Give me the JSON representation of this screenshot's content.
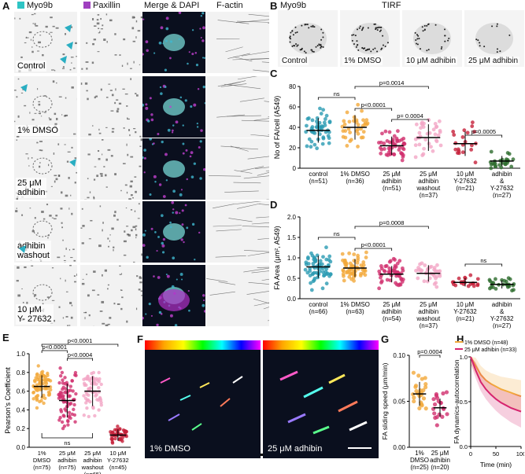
{
  "panel_letters": {
    "a": "A",
    "b": "B",
    "c": "C",
    "d": "D",
    "e": "E",
    "f": "F",
    "g": "G",
    "h": "H"
  },
  "panel_a": {
    "headers": {
      "myo9b": "Myo9b",
      "paxillin": "Paxillin",
      "merge": "Merge & DAPI",
      "factin": "F-actin"
    },
    "rows": [
      {
        "label": "Control"
      },
      {
        "label": "1% DMSO"
      },
      {
        "label": "25 μM\nadhibin"
      },
      {
        "label": "adhibin\nwashout"
      },
      {
        "label": "10 μM\nY- 27632"
      }
    ],
    "colors": {
      "myo9b": "#2ec4c4",
      "paxillin": "#a040c0",
      "arrow": "#2aaec2"
    }
  },
  "panel_b": {
    "title_left": "Myo9b",
    "title_center": "TIRF",
    "tiles": [
      {
        "label": "Control"
      },
      {
        "label": "1% DMSO"
      },
      {
        "label": "10 μM adhibin"
      },
      {
        "label": "25 μM adhibin"
      }
    ]
  },
  "panel_f": {
    "labels": [
      "1% DMSO",
      "25 μM adhibin"
    ]
  },
  "chart_data": [
    {
      "panel": "C",
      "type": "scatter",
      "ylabel": "No of FA/cell (A549)",
      "ylim": [
        0,
        80
      ],
      "yticks": [
        "0",
        "20",
        "40",
        "60",
        "80"
      ],
      "categories": [
        {
          "name": "control",
          "n": "(n=51)",
          "mean": 37,
          "sd": 12,
          "color": "#2a9bb3"
        },
        {
          "name": "1% DMSO",
          "n": "(n=36)",
          "mean": 40,
          "sd": 12,
          "color": "#f2a93b"
        },
        {
          "name": "25 μM\nadhibin",
          "n": "(n=51)",
          "mean": 22,
          "sd": 9,
          "color": "#d12f6e"
        },
        {
          "name": "25 μM\nadhibin\nwashout",
          "n": "(n=37)",
          "mean": 30,
          "sd": 13,
          "color": "#f3a6c6"
        },
        {
          "name": "10 μM\nY-27632",
          "n": "(n=21)",
          "mean": 24,
          "sd": 12,
          "color": "#c5203a"
        },
        {
          "name": "adhibin\n&\nY-27632",
          "n": "(n=27)",
          "mean": 7,
          "sd": 5,
          "color": "#2e6d2e"
        }
      ],
      "annotations": [
        "ns",
        "p<0.0001",
        "p=0.0014",
        "p= 0.0004",
        "p=0.0005"
      ]
    },
    {
      "panel": "D",
      "type": "scatter",
      "ylabel": "FA Area (μm², A549)",
      "ylim": [
        0,
        2
      ],
      "yticks": [
        "0.0",
        "0.5",
        "1.0",
        "1.5",
        "2.0"
      ],
      "categories": [
        {
          "name": "control",
          "n": "(n=66)",
          "mean": 0.78,
          "sd": 0.27,
          "color": "#2a9bb3"
        },
        {
          "name": "1% DMSO",
          "n": "(n=63)",
          "mean": 0.75,
          "sd": 0.22,
          "color": "#f2a93b"
        },
        {
          "name": "25 μM\nadhibin",
          "n": "(n=54)",
          "mean": 0.6,
          "sd": 0.2,
          "color": "#d12f6e"
        },
        {
          "name": "25 μM\nadhibin\nwashout",
          "n": "(n=37)",
          "mean": 0.62,
          "sd": 0.2,
          "color": "#f3a6c6"
        },
        {
          "name": "10 μM\nY-27632",
          "n": "(n=21)",
          "mean": 0.4,
          "sd": 0.1,
          "color": "#c5203a"
        },
        {
          "name": "adhibin\n&\nY-27632",
          "n": "(n=27)",
          "mean": 0.35,
          "sd": 0.1,
          "color": "#2e6d2e"
        }
      ],
      "annotations": [
        "ns",
        "p<0.0001",
        "p=0.0008",
        "ns"
      ]
    },
    {
      "panel": "E",
      "type": "scatter",
      "ylabel": "Pearson's Coefficient",
      "ylim": [
        0,
        1
      ],
      "yticks": [
        "0.0",
        "0.2",
        "0.4",
        "0.6",
        "0.8",
        "1.0"
      ],
      "categories": [
        {
          "name": "1%\nDMSO",
          "n": "(n=75)",
          "mean": 0.65,
          "sd": 0.12,
          "color": "#f2a93b"
        },
        {
          "name": "25 μM\nadhibin",
          "n": "(n=75)",
          "mean": 0.5,
          "sd": 0.18,
          "color": "#d12f6e"
        },
        {
          "name": "25 μM\nadhibin\nwashout",
          "n": "(n=65)",
          "mean": 0.6,
          "sd": 0.16,
          "color": "#f3a6c6"
        },
        {
          "name": "10 μM\nY-27632",
          "n": "(n=45)",
          "mean": 0.13,
          "sd": 0.06,
          "color": "#c5203a"
        }
      ],
      "annotations": [
        "p<0.0001",
        "p<0.0004",
        "p<0.0001",
        "ns"
      ]
    },
    {
      "panel": "G",
      "type": "scatter",
      "ylabel": "FA sliding speed (μm/min)",
      "ylim": [
        0,
        0.1
      ],
      "yticks": [
        "0.00",
        "0.05",
        "0.10"
      ],
      "categories": [
        {
          "name": "1%\nDMSO",
          "n": "(n=25)",
          "mean": 0.058,
          "sd": 0.013,
          "color": "#f2a93b"
        },
        {
          "name": "25 μM\nadhibin",
          "n": "(n=20)",
          "mean": 0.043,
          "sd": 0.01,
          "color": "#d12f6e"
        }
      ],
      "annotations": [
        "p=0.0004"
      ]
    },
    {
      "panel": "H",
      "type": "line",
      "ylabel": "FA dynamics-autocorrelation",
      "xlabel": "Time (min)",
      "xlim": [
        0,
        100
      ],
      "ylim": [
        0,
        1.0
      ],
      "xticks": [
        "0",
        "50",
        "100"
      ],
      "yticks": [
        "0.0",
        "0.5",
        "1.0"
      ],
      "series": [
        {
          "name": "1% DMSO (n=48)",
          "color": "#f2a93b",
          "x": [
            0,
            10,
            20,
            30,
            40,
            50,
            60,
            70,
            80,
            90,
            100
          ],
          "y": [
            1.0,
            0.9,
            0.8,
            0.74,
            0.7,
            0.67,
            0.64,
            0.62,
            0.6,
            0.58,
            0.56
          ]
        },
        {
          "name": "25 μM adhibin (n=33)",
          "color": "#d6246e",
          "x": [
            0,
            10,
            20,
            30,
            40,
            50,
            60,
            70,
            80,
            90,
            100
          ],
          "y": [
            1.0,
            0.85,
            0.72,
            0.64,
            0.58,
            0.53,
            0.49,
            0.46,
            0.43,
            0.41,
            0.39
          ]
        }
      ]
    }
  ]
}
